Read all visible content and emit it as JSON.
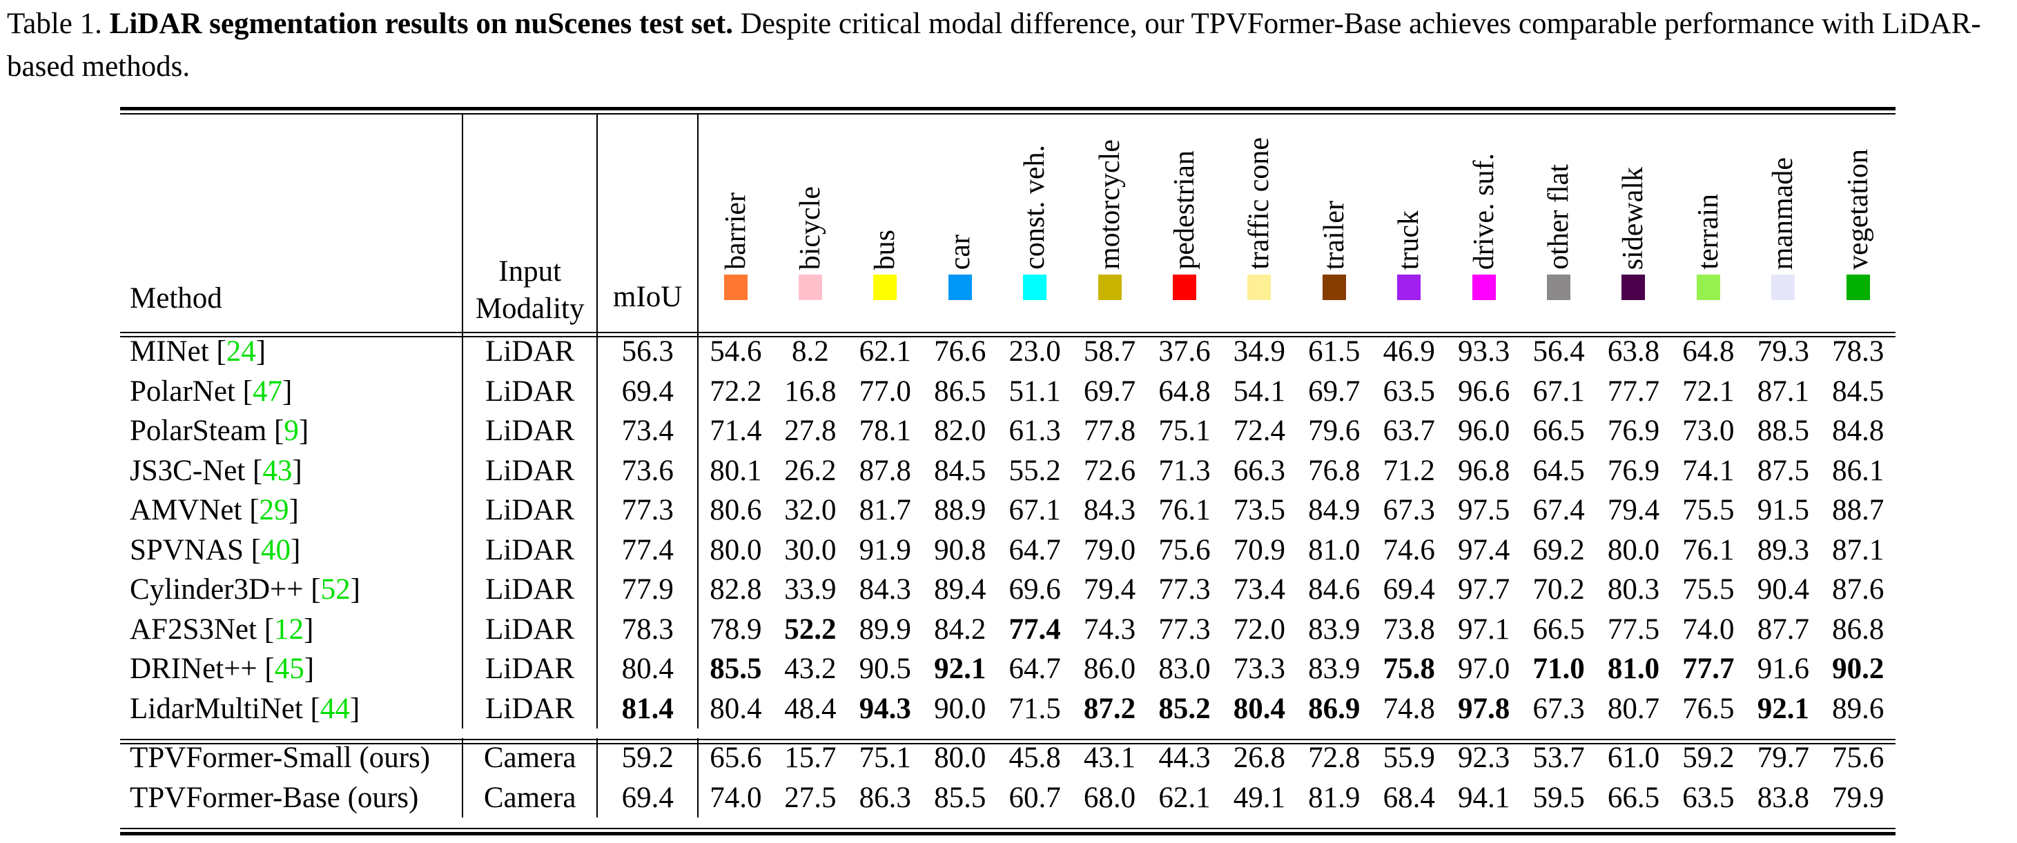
{
  "caption": {
    "prefix": "Table 1. ",
    "bold": "LiDAR segmentation results on nuScenes test set.",
    "rest": " Despite critical modal difference, our TPVFormer-Base achieves comparable performance with LiDAR-based methods."
  },
  "table": {
    "col_headers": {
      "method": "Method",
      "modality_line1": "Input",
      "modality_line2": "Modality",
      "miou": "mIoU"
    },
    "citation_color": "#00e000",
    "citation_format": {
      "open": " [",
      "close": "]"
    },
    "classes": [
      {
        "label": "barrier",
        "color": "#FF7832"
      },
      {
        "label": "bicycle",
        "color": "#FFC0CB"
      },
      {
        "label": "bus",
        "color": "#FFFF00"
      },
      {
        "label": "car",
        "color": "#0096F5"
      },
      {
        "label": "const. veh.",
        "color": "#00FFFF"
      },
      {
        "label": "motorcycle",
        "color": "#C8B400"
      },
      {
        "label": "pedestrian",
        "color": "#FF0000"
      },
      {
        "label": "traffic cone",
        "color": "#FFF096"
      },
      {
        "label": "trailer",
        "color": "#873C00"
      },
      {
        "label": "truck",
        "color": "#A020F0"
      },
      {
        "label": "drive. suf.",
        "color": "#FF00FF"
      },
      {
        "label": "other flat",
        "color": "#8B8989"
      },
      {
        "label": "sidewalk",
        "color": "#4B004B"
      },
      {
        "label": "terrain",
        "color": "#96F050"
      },
      {
        "label": "manmade",
        "color": "#E6E6FA"
      },
      {
        "label": "vegetation",
        "color": "#00AF00"
      }
    ],
    "groups": [
      {
        "rows": [
          {
            "method": "MINet",
            "ref": "24",
            "modality": "LiDAR",
            "miou": "56.3",
            "miou_bold": false,
            "values": [
              "54.6",
              "8.2",
              "62.1",
              "76.6",
              "23.0",
              "58.7",
              "37.6",
              "34.9",
              "61.5",
              "46.9",
              "93.3",
              "56.4",
              "63.8",
              "64.8",
              "79.3",
              "78.3"
            ],
            "bold": []
          },
          {
            "method": "PolarNet",
            "ref": "47",
            "modality": "LiDAR",
            "miou": "69.4",
            "miou_bold": false,
            "values": [
              "72.2",
              "16.8",
              "77.0",
              "86.5",
              "51.1",
              "69.7",
              "64.8",
              "54.1",
              "69.7",
              "63.5",
              "96.6",
              "67.1",
              "77.7",
              "72.1",
              "87.1",
              "84.5"
            ],
            "bold": []
          },
          {
            "method": "PolarSteam",
            "ref": "9",
            "modality": "LiDAR",
            "miou": "73.4",
            "miou_bold": false,
            "values": [
              "71.4",
              "27.8",
              "78.1",
              "82.0",
              "61.3",
              "77.8",
              "75.1",
              "72.4",
              "79.6",
              "63.7",
              "96.0",
              "66.5",
              "76.9",
              "73.0",
              "88.5",
              "84.8"
            ],
            "bold": []
          },
          {
            "method": "JS3C-Net",
            "ref": "43",
            "modality": "LiDAR",
            "miou": "73.6",
            "miou_bold": false,
            "values": [
              "80.1",
              "26.2",
              "87.8",
              "84.5",
              "55.2",
              "72.6",
              "71.3",
              "66.3",
              "76.8",
              "71.2",
              "96.8",
              "64.5",
              "76.9",
              "74.1",
              "87.5",
              "86.1"
            ],
            "bold": []
          },
          {
            "method": "AMVNet",
            "ref": "29",
            "modality": "LiDAR",
            "miou": "77.3",
            "miou_bold": false,
            "values": [
              "80.6",
              "32.0",
              "81.7",
              "88.9",
              "67.1",
              "84.3",
              "76.1",
              "73.5",
              "84.9",
              "67.3",
              "97.5",
              "67.4",
              "79.4",
              "75.5",
              "91.5",
              "88.7"
            ],
            "bold": []
          },
          {
            "method": "SPVNAS",
            "ref": "40",
            "modality": "LiDAR",
            "miou": "77.4",
            "miou_bold": false,
            "values": [
              "80.0",
              "30.0",
              "91.9",
              "90.8",
              "64.7",
              "79.0",
              "75.6",
              "70.9",
              "81.0",
              "74.6",
              "97.4",
              "69.2",
              "80.0",
              "76.1",
              "89.3",
              "87.1"
            ],
            "bold": []
          },
          {
            "method": "Cylinder3D++",
            "ref": "52",
            "modality": "LiDAR",
            "miou": "77.9",
            "miou_bold": false,
            "values": [
              "82.8",
              "33.9",
              "84.3",
              "89.4",
              "69.6",
              "79.4",
              "77.3",
              "73.4",
              "84.6",
              "69.4",
              "97.7",
              "70.2",
              "80.3",
              "75.5",
              "90.4",
              "87.6"
            ],
            "bold": []
          },
          {
            "method": "AF2S3Net",
            "ref": "12",
            "modality": "LiDAR",
            "miou": "78.3",
            "miou_bold": false,
            "values": [
              "78.9",
              "52.2",
              "89.9",
              "84.2",
              "77.4",
              "74.3",
              "77.3",
              "72.0",
              "83.9",
              "73.8",
              "97.1",
              "66.5",
              "77.5",
              "74.0",
              "87.7",
              "86.8"
            ],
            "bold": [
              1,
              4
            ]
          },
          {
            "method": "DRINet++",
            "ref": "45",
            "modality": "LiDAR",
            "miou": "80.4",
            "miou_bold": false,
            "values": [
              "85.5",
              "43.2",
              "90.5",
              "92.1",
              "64.7",
              "86.0",
              "83.0",
              "73.3",
              "83.9",
              "75.8",
              "97.0",
              "71.0",
              "81.0",
              "77.7",
              "91.6",
              "90.2"
            ],
            "bold": [
              0,
              3,
              9,
              11,
              12,
              13,
              15
            ]
          },
          {
            "method": "LidarMultiNet",
            "ref": "44",
            "modality": "LiDAR",
            "miou": "81.4",
            "miou_bold": true,
            "values": [
              "80.4",
              "48.4",
              "94.3",
              "90.0",
              "71.5",
              "87.2",
              "85.2",
              "80.4",
              "86.9",
              "74.8",
              "97.8",
              "67.3",
              "80.7",
              "76.5",
              "92.1",
              "89.6"
            ],
            "bold": [
              2,
              5,
              6,
              7,
              8,
              10,
              14
            ]
          }
        ]
      },
      {
        "rows": [
          {
            "method": "TPVFormer-Small (ours)",
            "ref": null,
            "modality": "Camera",
            "miou": "59.2",
            "miou_bold": false,
            "values": [
              "65.6",
              "15.7",
              "75.1",
              "80.0",
              "45.8",
              "43.1",
              "44.3",
              "26.8",
              "72.8",
              "55.9",
              "92.3",
              "53.7",
              "61.0",
              "59.2",
              "79.7",
              "75.6"
            ],
            "bold": []
          },
          {
            "method": "TPVFormer-Base (ours)",
            "ref": null,
            "modality": "Camera",
            "miou": "69.4",
            "miou_bold": false,
            "values": [
              "74.0",
              "27.5",
              "86.3",
              "85.5",
              "60.7",
              "68.0",
              "62.1",
              "49.1",
              "81.9",
              "68.4",
              "94.1",
              "59.5",
              "66.5",
              "63.5",
              "83.8",
              "79.9"
            ],
            "bold": []
          }
        ]
      }
    ]
  }
}
